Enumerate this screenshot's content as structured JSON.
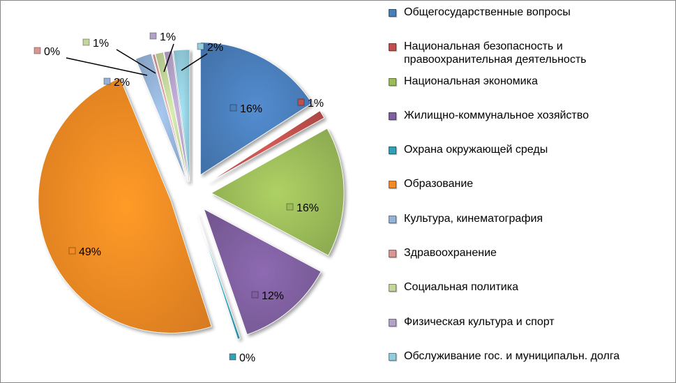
{
  "chart_data": {
    "type": "pie",
    "exploded": true,
    "legend_position": "right",
    "series": [
      {
        "name": "Общегосударственные вопросы",
        "value": 16,
        "label": "16%",
        "color": "#4a7ebb"
      },
      {
        "name": "Национальная безопасность и правоохранительная деятельность",
        "value": 1,
        "label": "1%",
        "color": "#c0504d"
      },
      {
        "name": "Национальная экономика",
        "value": 16,
        "label": "16%",
        "color": "#9bbb59"
      },
      {
        "name": "Жилищно-коммунальное хозяйство",
        "value": 12,
        "label": "12%",
        "color": "#7f5f9f"
      },
      {
        "name": "Охрана окружающей среды",
        "value": 0.3,
        "label": "0%",
        "color": "#31a0b8"
      },
      {
        "name": "Образование",
        "value": 49,
        "label": "49%",
        "color": "#f38a24"
      },
      {
        "name": "Культура, кинематография",
        "value": 2,
        "label": "2%",
        "color": "#95b3d7"
      },
      {
        "name": "Здравоохранение",
        "value": 0.3,
        "label": "0%",
        "color": "#d99694"
      },
      {
        "name": "Социальная политика",
        "value": 1,
        "label": "1%",
        "color": "#c3d69b"
      },
      {
        "name": "Физическая культура и спорт",
        "value": 1,
        "label": "1%",
        "color": "#b3a2c7"
      },
      {
        "name": "Обслуживание гос. и муниципальн. долга",
        "value": 2,
        "label": "2%",
        "color": "#93cddd"
      }
    ]
  }
}
